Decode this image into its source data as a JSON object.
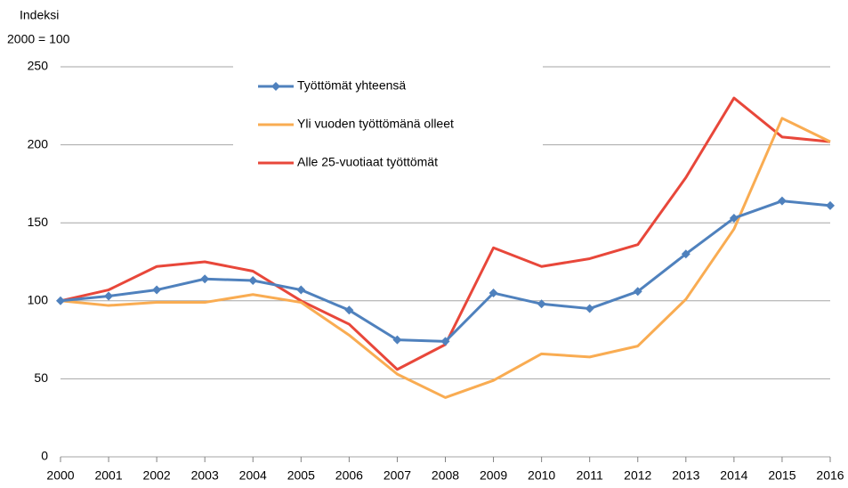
{
  "chart_data": {
    "type": "line",
    "y_label_lines": [
      "Indeksi",
      "2000 = 100"
    ],
    "categories": [
      "2000",
      "2001",
      "2002",
      "2003",
      "2004",
      "2005",
      "2006",
      "2007",
      "2008",
      "2009",
      "2010",
      "2011",
      "2012",
      "2013",
      "2014",
      "2015",
      "2016"
    ],
    "series": [
      {
        "name": "Työttömät yhteensä",
        "color": "#4f81bd",
        "marker": "diamond",
        "values": [
          100,
          103,
          107,
          114,
          113,
          107,
          94,
          75,
          74,
          105,
          98,
          95,
          106,
          130,
          153,
          164,
          161
        ]
      },
      {
        "name": "Yli vuoden työttömänä olleet",
        "color": "#f9ac52",
        "values": [
          100,
          97,
          99,
          99,
          104,
          99,
          78,
          53,
          38,
          49,
          66,
          64,
          71,
          101,
          146,
          217,
          202
        ]
      },
      {
        "name": "Alle 25-vuotiaat työttömät",
        "color": "#e8473a",
        "values": [
          100,
          107,
          122,
          125,
          119,
          100,
          85,
          56,
          72,
          134,
          122,
          127,
          136,
          179,
          230,
          205,
          202
        ]
      }
    ],
    "ylim": [
      0,
      250
    ],
    "yticks": [
      0,
      50,
      100,
      150,
      200,
      250
    ],
    "grid": true
  }
}
